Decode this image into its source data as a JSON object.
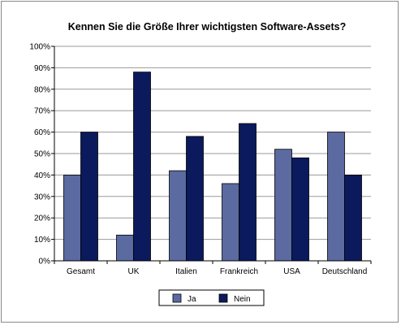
{
  "chart_data": {
    "type": "bar",
    "title": "Kennen Sie die Größe Ihrer wichtigsten Software-Assets?",
    "categories": [
      "Gesamt",
      "UK",
      "Italien",
      "Frankreich",
      "USA",
      "Deutschland"
    ],
    "series": [
      {
        "name": "Ja",
        "values": [
          40,
          12,
          42,
          36,
          52,
          60
        ],
        "color": "#5b6aa0"
      },
      {
        "name": "Nein",
        "values": [
          60,
          88,
          58,
          64,
          48,
          40
        ],
        "color": "#0b1a5c"
      }
    ],
    "yticks": [
      "0%",
      "10%",
      "20%",
      "30%",
      "40%",
      "50%",
      "60%",
      "70%",
      "80%",
      "90%",
      "100%"
    ],
    "ylim": [
      0,
      100
    ],
    "grid": true,
    "legend": "bottom-center",
    "xlabel": "",
    "ylabel": ""
  }
}
